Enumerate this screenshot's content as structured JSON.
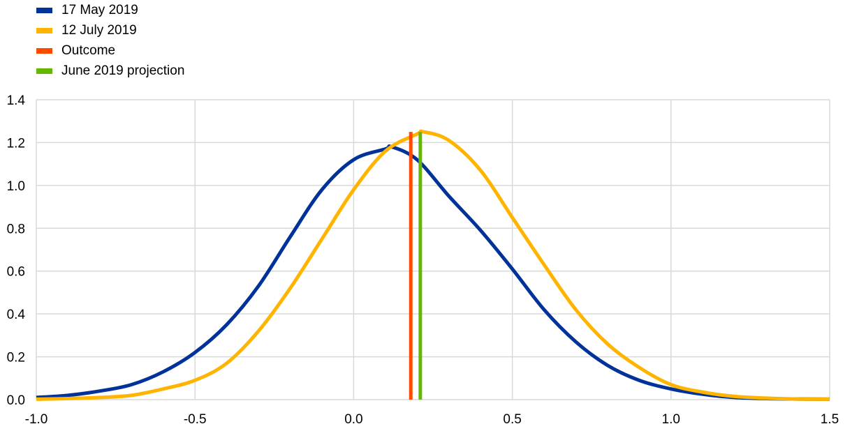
{
  "chart_data": {
    "type": "line",
    "title": "",
    "xlabel": "",
    "ylabel": "",
    "xlim": [
      -1.0,
      1.5
    ],
    "ylim": [
      0.0,
      1.4
    ],
    "x_ticks": [
      -1.0,
      -0.5,
      0.0,
      0.5,
      1.0,
      1.5
    ],
    "x_tick_labels": [
      "-1.0",
      "-0.5",
      "0.0",
      "0.5",
      "1.0",
      "1.5"
    ],
    "y_ticks": [
      0.0,
      0.2,
      0.4,
      0.6,
      0.8,
      1.0,
      1.2,
      1.4
    ],
    "y_tick_labels": [
      "0.0",
      "0.2",
      "0.4",
      "0.6",
      "0.8",
      "1.0",
      "1.2",
      "1.4"
    ],
    "grid": true,
    "legend_position": "top-left",
    "series": [
      {
        "name": "17 May 2019",
        "kind": "density",
        "color": "#003299",
        "x": [
          -1.0,
          -0.9,
          -0.8,
          -0.7,
          -0.6,
          -0.5,
          -0.4,
          -0.3,
          -0.2,
          -0.1,
          0.0,
          0.1,
          0.12,
          0.2,
          0.3,
          0.4,
          0.5,
          0.6,
          0.7,
          0.8,
          0.9,
          1.0,
          1.1,
          1.2,
          1.3,
          1.4,
          1.5
        ],
        "y": [
          0.01,
          0.02,
          0.04,
          0.07,
          0.13,
          0.22,
          0.35,
          0.53,
          0.76,
          0.98,
          1.12,
          1.17,
          1.18,
          1.12,
          0.95,
          0.79,
          0.61,
          0.42,
          0.27,
          0.16,
          0.09,
          0.05,
          0.025,
          0.01,
          0.005,
          0.003,
          0.002
        ]
      },
      {
        "name": "12 July 2019",
        "kind": "density",
        "color": "#FFB400",
        "x": [
          -1.0,
          -0.9,
          -0.8,
          -0.7,
          -0.6,
          -0.5,
          -0.4,
          -0.3,
          -0.2,
          -0.1,
          0.0,
          0.1,
          0.2,
          0.22,
          0.3,
          0.4,
          0.5,
          0.6,
          0.7,
          0.8,
          0.9,
          1.0,
          1.1,
          1.2,
          1.3,
          1.4,
          1.5
        ],
        "y": [
          0.002,
          0.005,
          0.01,
          0.02,
          0.05,
          0.09,
          0.17,
          0.32,
          0.52,
          0.75,
          0.98,
          1.16,
          1.24,
          1.25,
          1.21,
          1.07,
          0.85,
          0.63,
          0.42,
          0.26,
          0.15,
          0.07,
          0.035,
          0.015,
          0.007,
          0.003,
          0.002
        ]
      },
      {
        "name": "Outcome",
        "kind": "vline",
        "color": "#FF4B00",
        "x": 0.18,
        "y_top": 1.25
      },
      {
        "name": "June 2019 projection",
        "kind": "vline",
        "color": "#65B800",
        "x": 0.21,
        "y_top": 1.25
      }
    ]
  }
}
